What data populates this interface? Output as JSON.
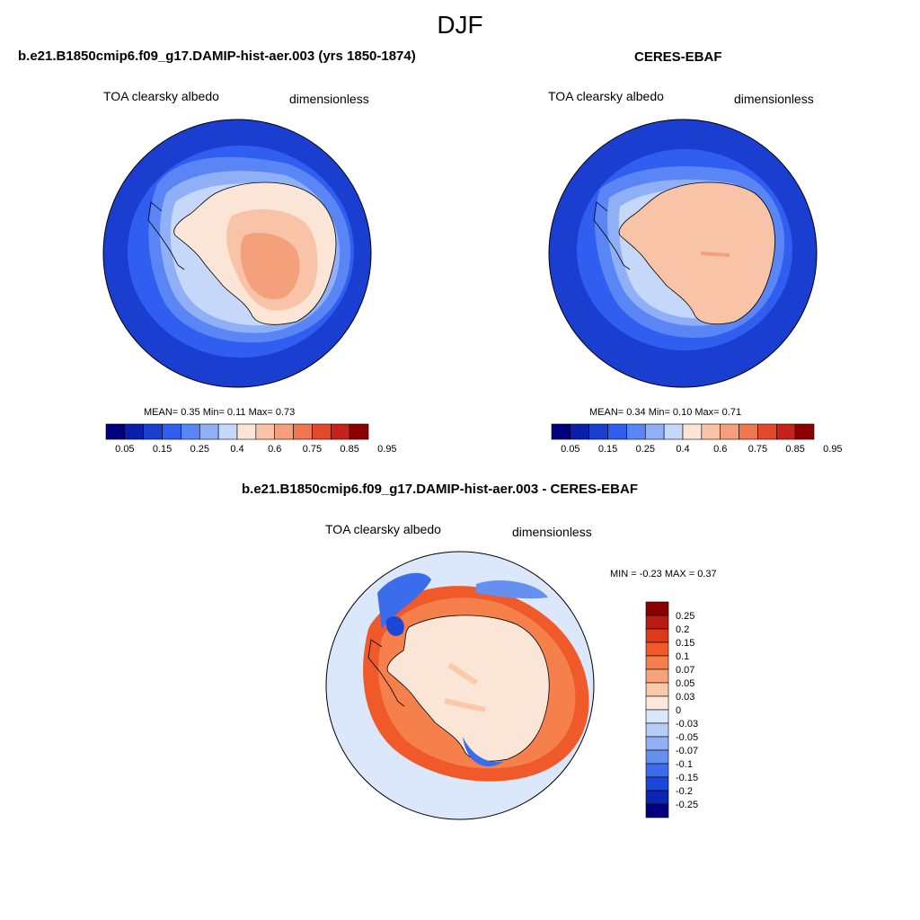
{
  "figure": {
    "season": "DJF"
  },
  "panels": [
    {
      "title": "b.e21.B1850cmip6.f09_g17.DAMIP-hist-aer.003 (yrs 1850-1874)",
      "variable": "TOA clearsky albedo",
      "units": "dimensionless",
      "stats_text": "MEAN=   0.35  Min=   0.11  Max=   0.73"
    },
    {
      "title": "CERES-EBAF",
      "variable": "TOA clearsky albedo",
      "units": "dimensionless",
      "stats_text": "MEAN=   0.34  Min=   0.10  Max=   0.71"
    },
    {
      "title": "b.e21.B1850cmip6.f09_g17.DAMIP-hist-aer.003 - CERES-EBAF",
      "variable": "TOA clearsky albedo",
      "units": "dimensionless",
      "stats_text": "MIN =  -0.23 MAX =   0.37"
    }
  ],
  "chart_data": [
    {
      "type": "heatmap",
      "projection": "south-polar-stereographic",
      "title": "b.e21.B1850cmip6.f09_g17.DAMIP-hist-aer.003 (yrs 1850-1874)",
      "variable": "TOA clearsky albedo",
      "units": "dimensionless",
      "mean": 0.35,
      "min": 0.11,
      "max": 0.73,
      "colorbar_orientation": "horizontal",
      "colorbar_labels": [
        "0.05",
        "0.15",
        "0.25",
        "0.4",
        "0.6",
        "0.75",
        "0.85",
        "0.95"
      ],
      "colorbar_colors": [
        "#00007f",
        "#0a1fa8",
        "#1a3fd0",
        "#2f5ef0",
        "#5a85f5",
        "#8fb0f7",
        "#c6d8fa",
        "#fbe5d6",
        "#f8c3a6",
        "#f4a07a",
        "#ee7751",
        "#e4492e",
        "#c4221a",
        "#8b0000"
      ]
    },
    {
      "type": "heatmap",
      "projection": "south-polar-stereographic",
      "title": "CERES-EBAF",
      "variable": "TOA clearsky albedo",
      "units": "dimensionless",
      "mean": 0.34,
      "min": 0.1,
      "max": 0.71,
      "colorbar_orientation": "horizontal",
      "colorbar_labels": [
        "0.05",
        "0.15",
        "0.25",
        "0.4",
        "0.6",
        "0.75",
        "0.85",
        "0.95"
      ],
      "colorbar_colors": [
        "#00007f",
        "#0a1fa8",
        "#1a3fd0",
        "#2f5ef0",
        "#5a85f5",
        "#8fb0f7",
        "#c6d8fa",
        "#fbe5d6",
        "#f8c3a6",
        "#f4a07a",
        "#ee7751",
        "#e4492e",
        "#c4221a",
        "#8b0000"
      ]
    },
    {
      "type": "heatmap",
      "projection": "south-polar-stereographic",
      "title": "b.e21.B1850cmip6.f09_g17.DAMIP-hist-aer.003 - CERES-EBAF",
      "variable": "TOA clearsky albedo",
      "units": "dimensionless",
      "min": -0.23,
      "max": 0.37,
      "colorbar_orientation": "vertical",
      "colorbar_labels": [
        "0.25",
        "0.2",
        "0.15",
        "0.1",
        "0.07",
        "0.05",
        "0.03",
        "0",
        "-0.03",
        "-0.05",
        "-0.07",
        "-0.1",
        "-0.15",
        "-0.2",
        "-0.25"
      ],
      "colorbar_colors": [
        "#8b0000",
        "#b81c10",
        "#de3a18",
        "#f05a2a",
        "#f5804c",
        "#f8a27a",
        "#fbc9a8",
        "#fde8da",
        "#dbe8fb",
        "#b6cdf7",
        "#8fb0f4",
        "#6690f0",
        "#3b6cec",
        "#1c47d6",
        "#0a26b0",
        "#00007f"
      ]
    }
  ],
  "colors": {
    "ocean_deep": "#1e4fe0",
    "ice_edge_light": "#c6d8fa",
    "continent_peach": "#f8c3a6",
    "continent_orange": "#f4a07a",
    "diff_background": "#dbe8fb"
  }
}
